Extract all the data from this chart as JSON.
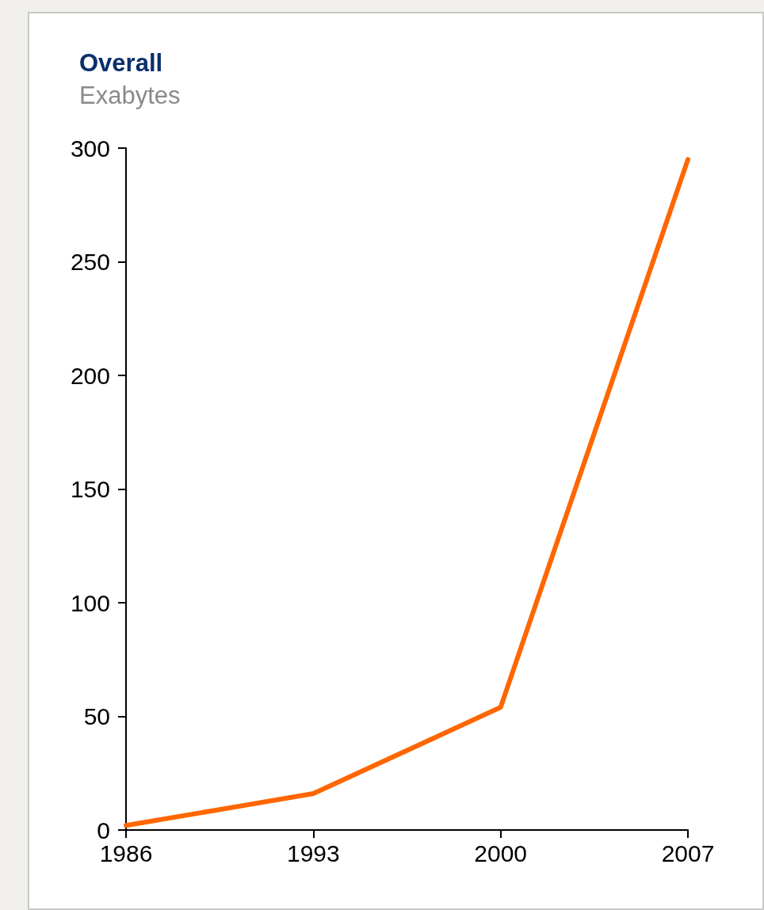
{
  "chart_data": {
    "type": "line",
    "title": "Overall",
    "subtitle": "Exabytes",
    "x": [
      1986,
      1993,
      2000,
      2007
    ],
    "series": [
      {
        "color": "#ff6600",
        "values": [
          2,
          16,
          54,
          295
        ]
      }
    ],
    "xlim": [
      1986,
      2007
    ],
    "xticks": [
      1986,
      1993,
      2000,
      2007
    ],
    "ylim": [
      0,
      300
    ],
    "yticks": [
      0,
      50,
      100,
      150,
      200,
      250,
      300
    ],
    "grid": false,
    "marker": "none",
    "line_style": "solid"
  }
}
